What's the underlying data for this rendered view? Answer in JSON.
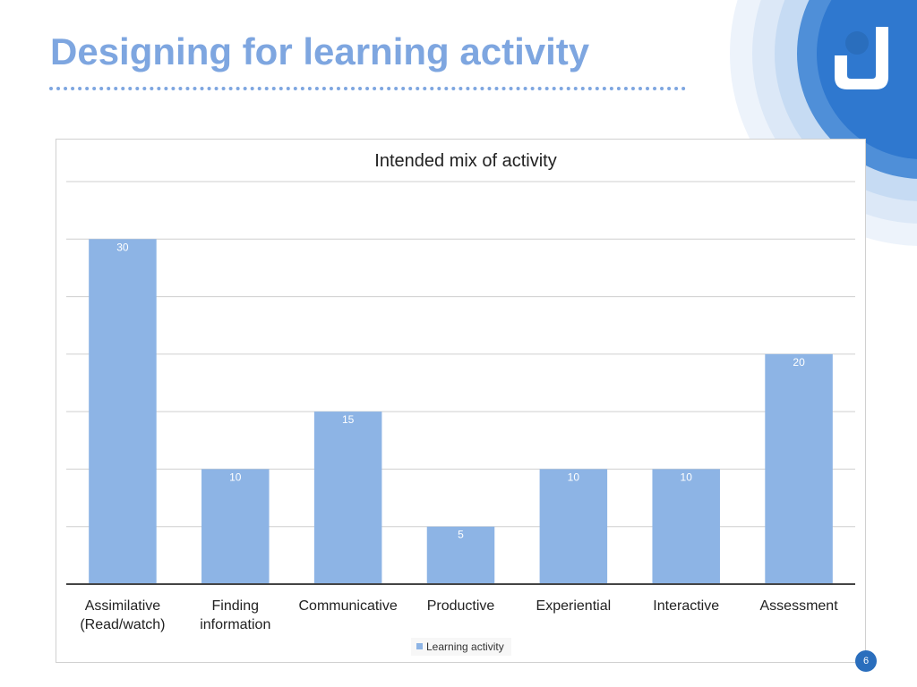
{
  "slide": {
    "title": "Designing for learning activity",
    "page_number": "6"
  },
  "colors": {
    "title": "#7ea6e0",
    "bar": "#8db4e5",
    "page_badge": "#2a6ebd",
    "logo_circle": "#2a6ebd"
  },
  "icons": {
    "logo": "open-university-logo-icon"
  },
  "chart_data": {
    "type": "bar",
    "title": "Intended mix of activity",
    "categories": [
      [
        "Assimilative",
        "(Read/watch)"
      ],
      [
        "Finding",
        "information"
      ],
      [
        "Communicative"
      ],
      [
        "Productive"
      ],
      [
        "Experiential"
      ],
      [
        "Interactive"
      ],
      [
        "Assessment"
      ]
    ],
    "series": [
      {
        "name": "Learning activity",
        "values": [
          30,
          10,
          15,
          5,
          10,
          10,
          20
        ]
      }
    ],
    "xlabel": "",
    "ylabel": "",
    "ylim": [
      0,
      35
    ],
    "grid": true,
    "data_labels": true,
    "legend": "bottom"
  }
}
